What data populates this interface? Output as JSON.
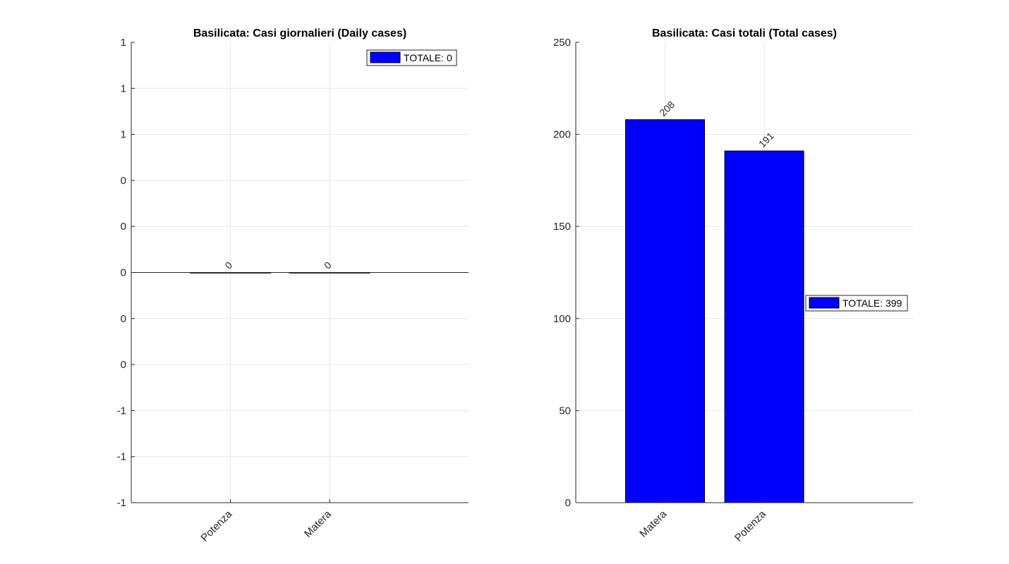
{
  "chart_data": [
    {
      "type": "bar",
      "title": "Basilicata: Casi giornalieri (Daily cases)",
      "categories": [
        "Potenza",
        "Matera"
      ],
      "values": [
        0,
        0
      ],
      "data_labels": [
        "0",
        "0"
      ],
      "ylim": [
        -1,
        1
      ],
      "ytick_labels": [
        "1",
        "1",
        "1",
        "0",
        "0",
        "0",
        "0",
        "0",
        "-1",
        "-1",
        "-1"
      ],
      "xlabel": "",
      "ylabel": "",
      "grid": true,
      "legend": {
        "label": "TOTALE: 0",
        "location": "top-right"
      },
      "bar_color": "#0000ff"
    },
    {
      "type": "bar",
      "title": "Basilicata: Casi totali (Total cases)",
      "categories": [
        "Matera",
        "Potenza"
      ],
      "values": [
        208,
        191
      ],
      "data_labels": [
        "208",
        "191"
      ],
      "ylim": [
        0,
        250
      ],
      "ytick_labels": [
        "250",
        "200",
        "150",
        "100",
        "50",
        "0"
      ],
      "xlabel": "",
      "ylabel": "",
      "grid": true,
      "legend": {
        "label": "TOTALE: 399",
        "location": "right"
      },
      "bar_color": "#0000ff"
    }
  ]
}
